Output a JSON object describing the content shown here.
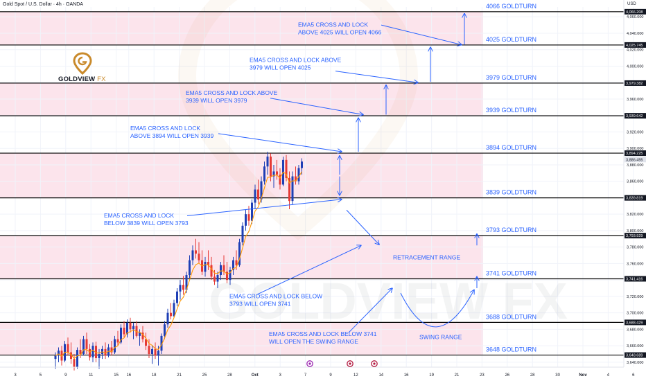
{
  "header": {
    "title": "Gold Spot / U.S. Dollar · 4h · OANDA",
    "currency": "USD"
  },
  "logo": {
    "name": "GOLDVIEW",
    "suffix": "FX"
  },
  "colors": {
    "band": "#fce4ec",
    "level_line": "#000000",
    "annotation": "#2962ff",
    "candle_up": "#1e3fb5",
    "candle_down": "#e53935",
    "ema": "#ff9800",
    "price_tag_bg": "#131722",
    "current_tag_bg": "#e0e3eb"
  },
  "chart_data": {
    "type": "candlestick",
    "symbol": "Gold Spot / U.S. Dollar",
    "interval": "4h",
    "ylim": [
      3634,
      4072
    ],
    "y_ticks": [
      3640,
      3660,
      3680,
      3700,
      3720,
      3740,
      3760,
      3780,
      3800,
      3820,
      3840,
      3860,
      3880,
      3900,
      3920,
      3940,
      3960,
      3980,
      4000,
      4020,
      4040,
      4060
    ],
    "x_ticks": [
      {
        "label": "3",
        "t": 0
      },
      {
        "label": "5",
        "t": 2
      },
      {
        "label": "9",
        "t": 4
      },
      {
        "label": "11",
        "t": 6
      },
      {
        "label": "15",
        "t": 8
      },
      {
        "label": "16",
        "t": 9
      },
      {
        "label": "18",
        "t": 11
      },
      {
        "label": "21",
        "t": 13
      },
      {
        "label": "25",
        "t": 15
      },
      {
        "label": "28",
        "t": 17
      },
      {
        "label": "Oct",
        "t": 19
      },
      {
        "label": "3",
        "t": 21
      },
      {
        "label": "7",
        "t": 23
      },
      {
        "label": "9",
        "t": 25
      },
      {
        "label": "12",
        "t": 27
      },
      {
        "label": "14",
        "t": 29
      },
      {
        "label": "16",
        "t": 31
      },
      {
        "label": "19",
        "t": 33
      },
      {
        "label": "21",
        "t": 35
      },
      {
        "label": "23",
        "t": 37
      },
      {
        "label": "26",
        "t": 39
      },
      {
        "label": "28",
        "t": 41
      },
      {
        "label": "30",
        "t": 43
      },
      {
        "label": "Nov",
        "t": 45
      },
      {
        "label": "4",
        "t": 47
      },
      {
        "label": "6",
        "t": 49
      }
    ],
    "levels": [
      {
        "value": 4066.208,
        "tag": "4,066.208",
        "label": "4066 GOLDTURN"
      },
      {
        "value": 4025.745,
        "tag": "4,025.745",
        "label": "4025 GOLDTURN"
      },
      {
        "value": 3979.382,
        "tag": "3,979.382",
        "label": "3979 GOLDTURN"
      },
      {
        "value": 3939.642,
        "tag": "3,939.642",
        "label": "3939 GOLDTURN"
      },
      {
        "value": 3894.225,
        "tag": "3,894.225",
        "label": "3894 GOLDTURN"
      },
      {
        "value": 3839.819,
        "tag": "3,839.819",
        "label": "3839 GOLDTURN"
      },
      {
        "value": 3793.929,
        "tag": "3,793.929",
        "label": "3793 GOLDTURN"
      },
      {
        "value": 3741.416,
        "tag": "3,741.416",
        "label": "3741 GOLDTURN"
      },
      {
        "value": 3688.429,
        "tag": "3,688.429",
        "label": "3688 GOLDTURN"
      },
      {
        "value": 3648.689,
        "tag": "3,648.689",
        "label": "3648 GOLDTURN"
      }
    ],
    "bands": [
      [
        4025.745,
        4066.208
      ],
      [
        3939.642,
        3979.382
      ],
      [
        3839.819,
        3894.225
      ],
      [
        3741.416,
        3793.929
      ],
      [
        3648.689,
        3688.429
      ]
    ],
    "current_price": {
      "value": 3886.455,
      "tag": "3,886.455"
    },
    "annotations": [
      {
        "lines": [
          "EMA5 CROSS AND LOCK",
          "ABOVE 4025 WILL OPEN 4066"
        ]
      },
      {
        "lines": [
          "EMA5 CROSS AND LOCK ABOVE",
          "3979 WILL OPEN 4025"
        ]
      },
      {
        "lines": [
          "EMA5 CROSS AND LOCK ABOVE",
          "3939 WILL OPEN 3979"
        ]
      },
      {
        "lines": [
          "EMA5 CROSS AND LOCK",
          "ABOVE 3894 WILL OPEN 3939"
        ]
      },
      {
        "lines": [
          "EMA5 CROSS AND LOCK",
          "BELOW 3839 WILL OPEN 3793"
        ]
      },
      {
        "lines": [
          "EMA5 CROSS AND LOCK BELOW",
          "3793 WILL OPEN 3741"
        ]
      },
      {
        "lines": [
          "EMA5 CROSS AND LOCK BELOW 3741",
          "WILL OPEN THE SWING RANGE"
        ]
      },
      {
        "lines": [
          "RETRACEMENT RANGE"
        ]
      },
      {
        "lines": [
          "SWING RANGE"
        ]
      }
    ],
    "candles": [
      [
        3644,
        3652,
        3632,
        3648
      ],
      [
        3648,
        3658,
        3640,
        3654
      ],
      [
        3654,
        3660,
        3636,
        3642
      ],
      [
        3642,
        3666,
        3640,
        3662
      ],
      [
        3662,
        3670,
        3648,
        3652
      ],
      [
        3652,
        3664,
        3638,
        3644
      ],
      [
        3644,
        3650,
        3630,
        3634
      ],
      [
        3634,
        3658,
        3632,
        3655
      ],
      [
        3655,
        3668,
        3645,
        3650
      ],
      [
        3650,
        3672,
        3648,
        3668
      ],
      [
        3668,
        3676,
        3650,
        3656
      ],
      [
        3656,
        3662,
        3642,
        3646
      ],
      [
        3646,
        3664,
        3640,
        3660
      ],
      [
        3660,
        3665,
        3640,
        3645
      ],
      [
        3645,
        3656,
        3632,
        3650
      ],
      [
        3650,
        3660,
        3644,
        3656
      ],
      [
        3656,
        3664,
        3644,
        3648
      ],
      [
        3648,
        3662,
        3646,
        3658
      ],
      [
        3658,
        3666,
        3648,
        3652
      ],
      [
        3652,
        3672,
        3650,
        3668
      ],
      [
        3668,
        3678,
        3660,
        3664
      ],
      [
        3664,
        3686,
        3662,
        3682
      ],
      [
        3682,
        3690,
        3670,
        3674
      ],
      [
        3674,
        3692,
        3670,
        3688
      ],
      [
        3688,
        3694,
        3676,
        3680
      ],
      [
        3680,
        3688,
        3668,
        3684
      ],
      [
        3684,
        3690,
        3670,
        3672
      ],
      [
        3672,
        3680,
        3660,
        3676
      ],
      [
        3676,
        3684,
        3664,
        3668
      ],
      [
        3668,
        3676,
        3655,
        3660
      ],
      [
        3660,
        3668,
        3645,
        3650
      ],
      [
        3650,
        3660,
        3638,
        3656
      ],
      [
        3656,
        3664,
        3644,
        3648
      ],
      [
        3648,
        3660,
        3636,
        3654
      ],
      [
        3654,
        3675,
        3650,
        3672
      ],
      [
        3672,
        3690,
        3668,
        3686
      ],
      [
        3686,
        3705,
        3682,
        3700
      ],
      [
        3700,
        3712,
        3692,
        3696
      ],
      [
        3696,
        3716,
        3694,
        3712
      ],
      [
        3712,
        3730,
        3708,
        3726
      ],
      [
        3726,
        3740,
        3716,
        3734
      ],
      [
        3734,
        3745,
        3722,
        3728
      ],
      [
        3728,
        3750,
        3724,
        3746
      ],
      [
        3746,
        3770,
        3742,
        3764
      ],
      [
        3764,
        3782,
        3758,
        3776
      ],
      [
        3776,
        3790,
        3766,
        3772
      ],
      [
        3772,
        3786,
        3760,
        3764
      ],
      [
        3764,
        3776,
        3746,
        3750
      ],
      [
        3750,
        3768,
        3744,
        3762
      ],
      [
        3762,
        3776,
        3752,
        3758
      ],
      [
        3758,
        3768,
        3740,
        3744
      ],
      [
        3744,
        3752,
        3734,
        3738
      ],
      [
        3738,
        3750,
        3730,
        3746
      ],
      [
        3746,
        3762,
        3740,
        3758
      ],
      [
        3758,
        3770,
        3746,
        3750
      ],
      [
        3750,
        3762,
        3736,
        3740
      ],
      [
        3740,
        3756,
        3734,
        3752
      ],
      [
        3752,
        3768,
        3746,
        3764
      ],
      [
        3764,
        3776,
        3752,
        3758
      ],
      [
        3758,
        3790,
        3756,
        3786
      ],
      [
        3786,
        3810,
        3782,
        3806
      ],
      [
        3806,
        3826,
        3800,
        3820
      ],
      [
        3820,
        3830,
        3806,
        3812
      ],
      [
        3812,
        3838,
        3808,
        3834
      ],
      [
        3834,
        3856,
        3826,
        3850
      ],
      [
        3850,
        3862,
        3832,
        3838
      ],
      [
        3838,
        3866,
        3834,
        3860
      ],
      [
        3860,
        3884,
        3856,
        3878
      ],
      [
        3878,
        3896,
        3868,
        3890
      ],
      [
        3890,
        3894,
        3860,
        3866
      ],
      [
        3866,
        3880,
        3852,
        3872
      ],
      [
        3872,
        3886,
        3862,
        3868
      ],
      [
        3868,
        3876,
        3850,
        3856
      ],
      [
        3856,
        3890,
        3854,
        3886
      ],
      [
        3886,
        3892,
        3860,
        3864
      ],
      [
        3864,
        3872,
        3826,
        3836
      ],
      [
        3836,
        3872,
        3832,
        3866
      ],
      [
        3866,
        3878,
        3856,
        3860
      ],
      [
        3860,
        3880,
        3856,
        3876
      ],
      [
        3876,
        3888,
        3868,
        3884
      ]
    ]
  }
}
